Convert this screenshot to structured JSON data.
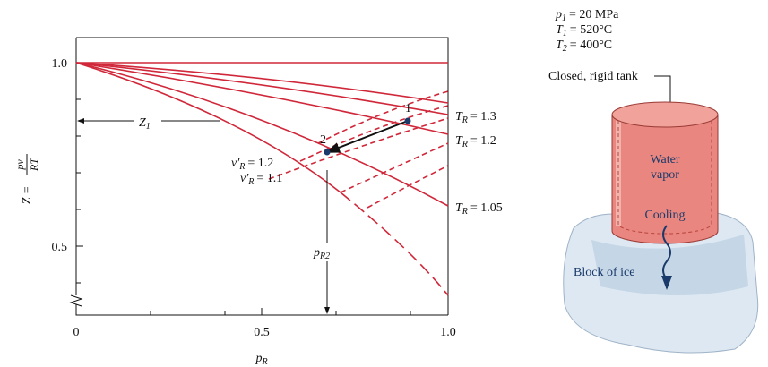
{
  "chart": {
    "y_axis_label": {
      "symbol": "Z",
      "equals": "=",
      "numerator": "pv",
      "denominator": "RT"
    },
    "x_axis_label": {
      "symbol": "p",
      "subscript": "R"
    },
    "y_ticks": [
      "1.0",
      "0.5"
    ],
    "x_ticks": [
      "0",
      "0.5",
      "1.0"
    ],
    "curves": [
      {
        "symbol": "T",
        "subscript": "R",
        "value": "= 1.3"
      },
      {
        "symbol": "T",
        "subscript": "R",
        "value": "= 1.2"
      },
      {
        "symbol": "T",
        "subscript": "R",
        "value": "= 1.05"
      }
    ],
    "volume_labels": [
      {
        "symbol": "v′",
        "subscript": "R",
        "value": "= 1.2"
      },
      {
        "symbol": "v′",
        "subscript": "R",
        "value": "= 1.1"
      }
    ],
    "z1": {
      "symbol": "Z",
      "subscript": "1"
    },
    "pr2": {
      "symbol": "p",
      "subscript": "R2"
    },
    "states": [
      "1",
      "2"
    ]
  },
  "tank": {
    "conditions": [
      {
        "symbol": "p",
        "subscript": "1",
        "value": "= 20 MPa"
      },
      {
        "symbol": "T",
        "subscript": "1",
        "value": "= 520°C"
      },
      {
        "symbol": "T",
        "subscript": "2",
        "value": "= 400°C"
      }
    ],
    "tank_label": "Closed, rigid tank",
    "contents": [
      "Water",
      "vapor"
    ],
    "process": "Cooling",
    "ice_label": "Block of ice"
  }
}
